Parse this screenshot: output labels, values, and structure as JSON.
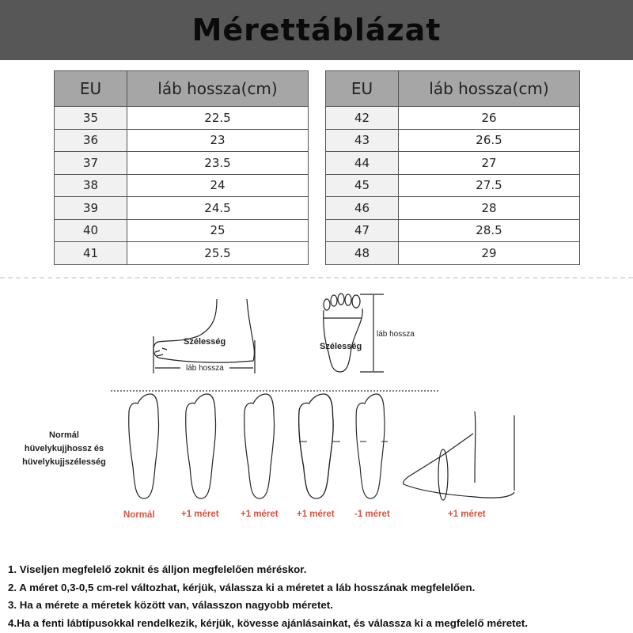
{
  "title": "Mérettáblázat",
  "colors": {
    "header_bg": "#575757",
    "table_header_bg": "#a6a6a6",
    "accent_red": "#d9533f"
  },
  "tables": [
    {
      "headers": [
        "EU",
        "láb hossza(cm)"
      ],
      "rows": [
        [
          "35",
          "22.5"
        ],
        [
          "36",
          "23"
        ],
        [
          "37",
          "23.5"
        ],
        [
          "38",
          "24"
        ],
        [
          "39",
          "24.5"
        ],
        [
          "40",
          "25"
        ],
        [
          "41",
          "25.5"
        ]
      ]
    },
    {
      "headers": [
        "EU",
        "láb hossza(cm)"
      ],
      "rows": [
        [
          "42",
          "26"
        ],
        [
          "43",
          "26.5"
        ],
        [
          "44",
          "27"
        ],
        [
          "45",
          "27.5"
        ],
        [
          "46",
          "28"
        ],
        [
          "47",
          "28.5"
        ],
        [
          "48",
          "29"
        ]
      ]
    }
  ],
  "diagram": {
    "side_width_label": "Szélesség",
    "side_length_label": "láb hossza",
    "sole_width_label": "Szélesség",
    "sole_length_label": "láb hossza",
    "normal_label": [
      "Normál",
      "hüvelykujjhossz és",
      "hüvelykujjszélesség"
    ],
    "foot_types": [
      "Normál",
      "+1 méret",
      "+1 méret",
      "+1 méret",
      "-1 méret",
      "+1 méret"
    ]
  },
  "notes": [
    "1. Viseljen megfelelő zoknit és álljon megfelelően méréskor.",
    "2. A méret 0,3-0,5 cm-rel változhat, kérjük, válassza ki a méretet a láb hosszának megfelelően.",
    "3. Ha a mérete a méretek között van, válasszon nagyobb méretet.",
    "4.Ha a fenti lábtípusokkal rendelkezik, kérjük, kövesse ajánlásainkat, és válassza ki a megfelelő méretet."
  ]
}
